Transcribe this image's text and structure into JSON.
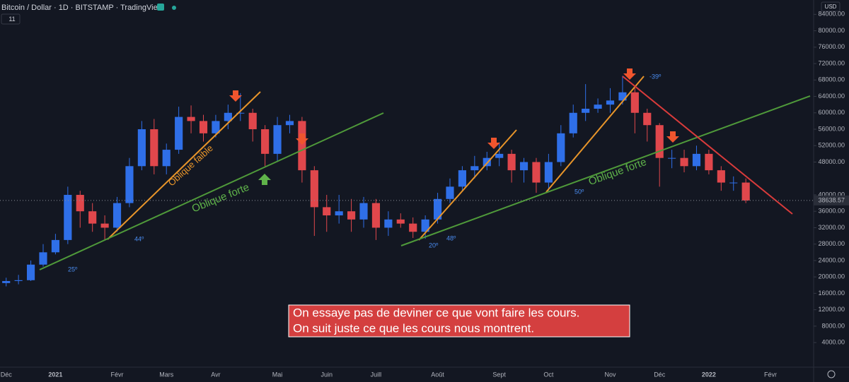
{
  "header": {
    "title": "Bitcoin / Dollar · 1D · BITSTAMP · TradingView",
    "interval_badge": "11",
    "currency": "USD"
  },
  "chart_data": {
    "type": "candlestick",
    "categories": [
      "Déc",
      null,
      null,
      null,
      "2021",
      null,
      null,
      null,
      null,
      "Févr",
      null,
      null,
      null,
      "Mars",
      null,
      null,
      null,
      "Avr",
      null,
      null,
      null,
      null,
      "Mai",
      null,
      null,
      null,
      "Juin",
      null,
      null,
      null,
      "Juill",
      null,
      null,
      null,
      null,
      "Août",
      null,
      null,
      null,
      null,
      "Sept",
      null,
      null,
      null,
      "Oct",
      null,
      null,
      null,
      null,
      "Nov",
      null,
      null,
      null,
      "Déc",
      null,
      null,
      null,
      "2022",
      null,
      null,
      null,
      null,
      "Févr",
      null,
      null,
      null
    ],
    "open": [
      18500,
      19000,
      19200,
      23000,
      26000,
      29000,
      40000,
      36000,
      33000,
      32000,
      38000,
      47000,
      56000,
      47000,
      51000,
      59000,
      58000,
      55000,
      58000,
      60000,
      60000,
      56000,
      50000,
      57000,
      58000,
      46000,
      37000,
      35000,
      36000,
      34000,
      38000,
      32000,
      34000,
      33000,
      31000,
      34000,
      39000,
      42000,
      46000,
      47000,
      49000,
      50000,
      46000,
      48000,
      43000,
      48000,
      55000,
      60000,
      61000,
      62000,
      63000,
      65000,
      60000,
      57000,
      49000,
      49000,
      47000,
      50000,
      46000,
      43000,
      43000,
      null,
      null,
      null,
      null,
      null
    ],
    "high": [
      19800,
      20500,
      24000,
      28000,
      30500,
      42000,
      41000,
      38000,
      35000,
      39500,
      49000,
      58000,
      58500,
      52500,
      61500,
      61800,
      59500,
      59500,
      62000,
      64800,
      61000,
      57000,
      59000,
      59500,
      59000,
      47000,
      40000,
      40000,
      39000,
      39500,
      39000,
      36000,
      35500,
      34500,
      35000,
      40500,
      44000,
      47000,
      49500,
      50500,
      52800,
      51000,
      49000,
      49000,
      50000,
      57000,
      62000,
      67000,
      63500,
      66000,
      69000,
      66000,
      61000,
      57500,
      51000,
      51000,
      52000,
      51000,
      47000,
      44500,
      44000,
      null,
      null,
      null,
      null,
      null
    ],
    "low": [
      17700,
      18200,
      19000,
      22500,
      25500,
      28000,
      32000,
      31000,
      29000,
      31000,
      37000,
      46000,
      45000,
      45000,
      50000,
      55000,
      53000,
      54000,
      56000,
      58000,
      53000,
      47000,
      48000,
      55000,
      43000,
      30000,
      31000,
      33000,
      31000,
      32000,
      29000,
      30000,
      32000,
      29500,
      29300,
      33000,
      38000,
      41000,
      44000,
      46000,
      47000,
      43000,
      43000,
      40500,
      41000,
      47000,
      54000,
      58000,
      60000,
      60000,
      62000,
      55000,
      53000,
      42000,
      46500,
      45500,
      46000,
      45000,
      41000,
      41000,
      38000,
      null,
      null,
      null,
      null,
      null
    ],
    "close": [
      19000,
      19200,
      23000,
      26000,
      29000,
      40000,
      36000,
      33000,
      32000,
      38000,
      47000,
      56000,
      47000,
      51000,
      59000,
      58000,
      55000,
      58000,
      60000,
      60000,
      56000,
      50000,
      57000,
      58000,
      46000,
      37000,
      35000,
      36000,
      34000,
      38000,
      32000,
      34000,
      33000,
      31000,
      34000,
      39000,
      42000,
      46000,
      47000,
      49000,
      50000,
      46000,
      48000,
      43000,
      48000,
      55000,
      60000,
      61000,
      62000,
      63000,
      65000,
      60000,
      57000,
      49000,
      49000,
      47000,
      50000,
      46000,
      43000,
      43000,
      38639,
      null,
      null,
      null,
      null,
      null
    ],
    "up_color": "#2f6fe8",
    "down_color": "#e0474c",
    "ylim": [
      -2000,
      87500
    ],
    "yticks": [
      {
        "value": 4000,
        "label": "4000.00"
      },
      {
        "value": 8000,
        "label": "8000.00"
      },
      {
        "value": 12000,
        "label": "12000.00"
      },
      {
        "value": 16000,
        "label": "16000.00"
      },
      {
        "value": 20000,
        "label": "20000.00"
      },
      {
        "value": 24000,
        "label": "24000.00"
      },
      {
        "value": 28000,
        "label": "28000.00"
      },
      {
        "value": 32000,
        "label": "32000.00"
      },
      {
        "value": 36000,
        "label": "36000.00"
      },
      {
        "value": 40000,
        "label": "40000.00"
      },
      {
        "value": 48000,
        "label": "48000.00"
      },
      {
        "value": 52000,
        "label": "52000.00"
      },
      {
        "value": 56000,
        "label": "56000.00"
      },
      {
        "value": 60000,
        "label": "60000.00"
      },
      {
        "value": 64000,
        "label": "64000.00"
      },
      {
        "value": 68000,
        "label": "68000.00"
      },
      {
        "value": 72000,
        "label": "72000.00"
      },
      {
        "value": 76000,
        "label": "76000.00"
      },
      {
        "value": 80000,
        "label": "80000.00"
      },
      {
        "value": 84000,
        "label": "84000.00"
      }
    ],
    "grid": false,
    "last_price": 38638.57
  },
  "annotations": {
    "weak_line": "Oblique faible",
    "strong_line_1": "Oblique forte",
    "strong_line_2": "Oblique forte",
    "angles": [
      "25º",
      "44º",
      "20º",
      "48º",
      "50º",
      "-39º"
    ],
    "callout": [
      "On essaye pas de deviner ce que vont faire les cours.",
      "On suit juste ce que les cours nous montrent."
    ]
  }
}
